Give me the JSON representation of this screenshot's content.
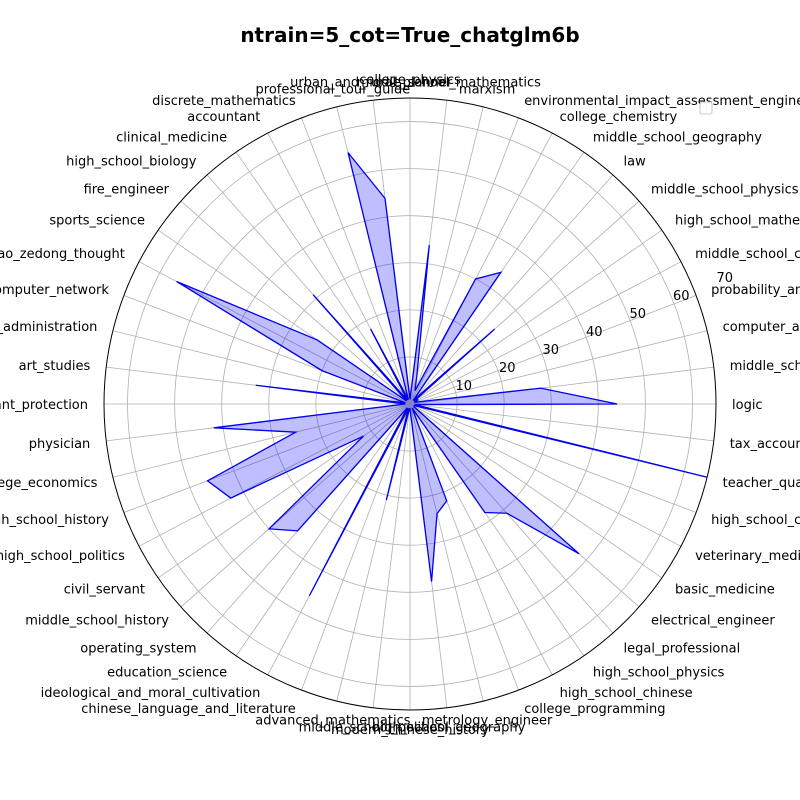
{
  "chart_data": {
    "type": "radar",
    "title": "ntrain=5_cot=True_chatglm6b",
    "rlim": [
      0,
      65
    ],
    "r_ticks": [
      10,
      20,
      30,
      40,
      50,
      60,
      70
    ],
    "grid": true,
    "legend": "top-right (empty)",
    "colors": {
      "line": "#0000ee",
      "fill": "#0000ff",
      "grid": "#b0b0b0",
      "spine": "#000000"
    },
    "categories": [
      "logic",
      "middle_school_biology",
      "computer_architecture",
      "probability_and_statistics",
      "middle_school_chemistry",
      "high_school_mathematics",
      "middle_school_physics",
      "law",
      "middle_school_geography",
      "college_chemistry",
      "environmental_impact_assessment_engineer",
      "marxism",
      "middle_school_mathematics",
      "college_physics",
      "urban_and_rural_planner",
      "professional_tour_guide",
      "discrete_mathematics",
      "accountant",
      "clinical_medicine",
      "high_school_biology",
      "fire_engineer",
      "sports_science",
      "mao_zedong_thought",
      "computer_network",
      "business_administration",
      "art_studies",
      "plant_protection",
      "physician",
      "college_economics",
      "high_school_history",
      "high_school_politics",
      "civil_servant",
      "middle_school_history",
      "operating_system",
      "education_science",
      "ideological_and_moral_cultivation",
      "chinese_language_and_literature",
      "advanced_mathematics",
      "middle_school_politics",
      "modern_chinese_history",
      "high_school_geography",
      "metrology_engineer",
      "college_programming",
      "high_school_chinese",
      "high_school_physics",
      "legal_professional",
      "electrical_engineer",
      "basic_medicine",
      "veterinary_medicine",
      "high_school_chemistry",
      "teacher_qualification",
      "tax_accountant"
    ],
    "series": [
      {
        "values": [
          44,
          28,
          2,
          1,
          2,
          1,
          24,
          1,
          34,
          30,
          3,
          6,
          34,
          1,
          44,
          55,
          1,
          18,
          1,
          31,
          1,
          24,
          56,
          20,
          1,
          33,
          1,
          42,
          25,
          46,
          43,
          12,
          40,
          36,
          1,
          46,
          1,
          21,
          1,
          1,
          38,
          24,
          22,
          1,
          28,
          31,
          48,
          1,
          1,
          1,
          65,
          1
        ]
      }
    ]
  }
}
